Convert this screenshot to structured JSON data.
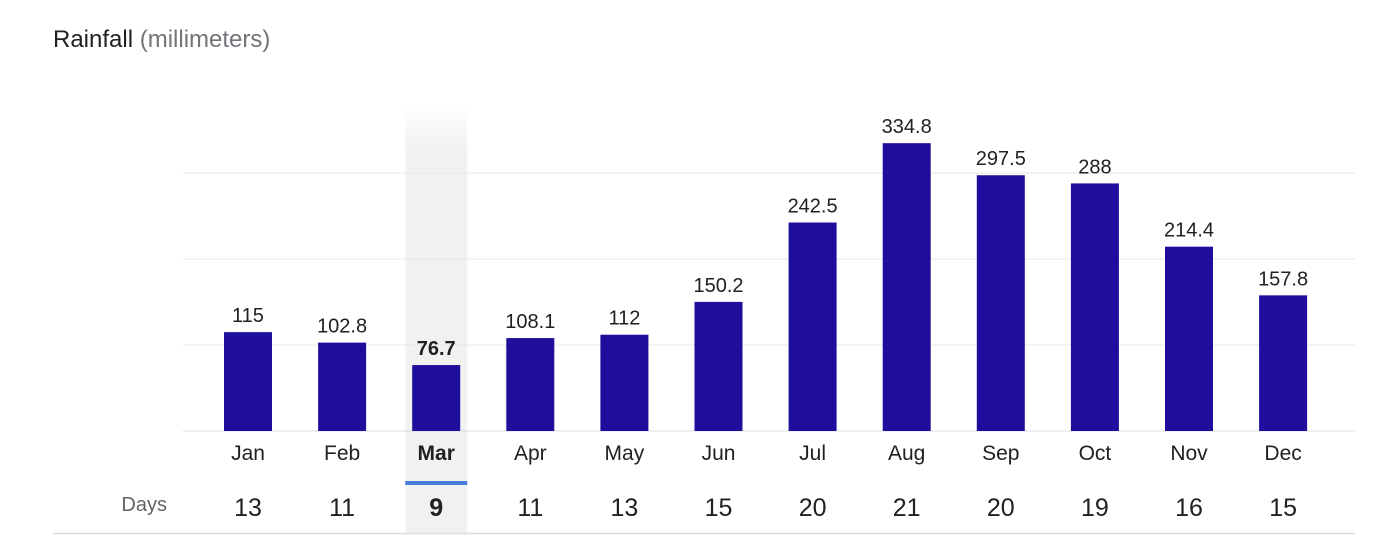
{
  "header": {
    "title": "Rainfall",
    "unit": "(millimeters)"
  },
  "days_row": {
    "label": "Days"
  },
  "selected_index": 2,
  "colors": {
    "bar": "#1f0e9c",
    "grid": "#e8e8e8",
    "highlight": "#f1f1f1",
    "selected_marker": "#4a7cdc",
    "text": "#202124",
    "muted": "#5f6368"
  },
  "chart_data": {
    "type": "bar",
    "title": "Rainfall (millimeters)",
    "xlabel": "",
    "ylabel": "",
    "categories": [
      "Jan",
      "Feb",
      "Mar",
      "Apr",
      "May",
      "Jun",
      "Jul",
      "Aug",
      "Sep",
      "Oct",
      "Nov",
      "Dec"
    ],
    "values": [
      115,
      102.8,
      76.7,
      108.1,
      112,
      150.2,
      242.5,
      334.8,
      297.5,
      288,
      214.4,
      157.8
    ],
    "value_labels": [
      "115",
      "102.8",
      "76.7",
      "108.1",
      "112",
      "150.2",
      "242.5",
      "334.8",
      "297.5",
      "288",
      "214.4",
      "157.8"
    ],
    "days": [
      13,
      11,
      9,
      11,
      13,
      15,
      20,
      21,
      20,
      19,
      16,
      15
    ],
    "ylim": [
      0,
      400
    ],
    "grid": true
  }
}
